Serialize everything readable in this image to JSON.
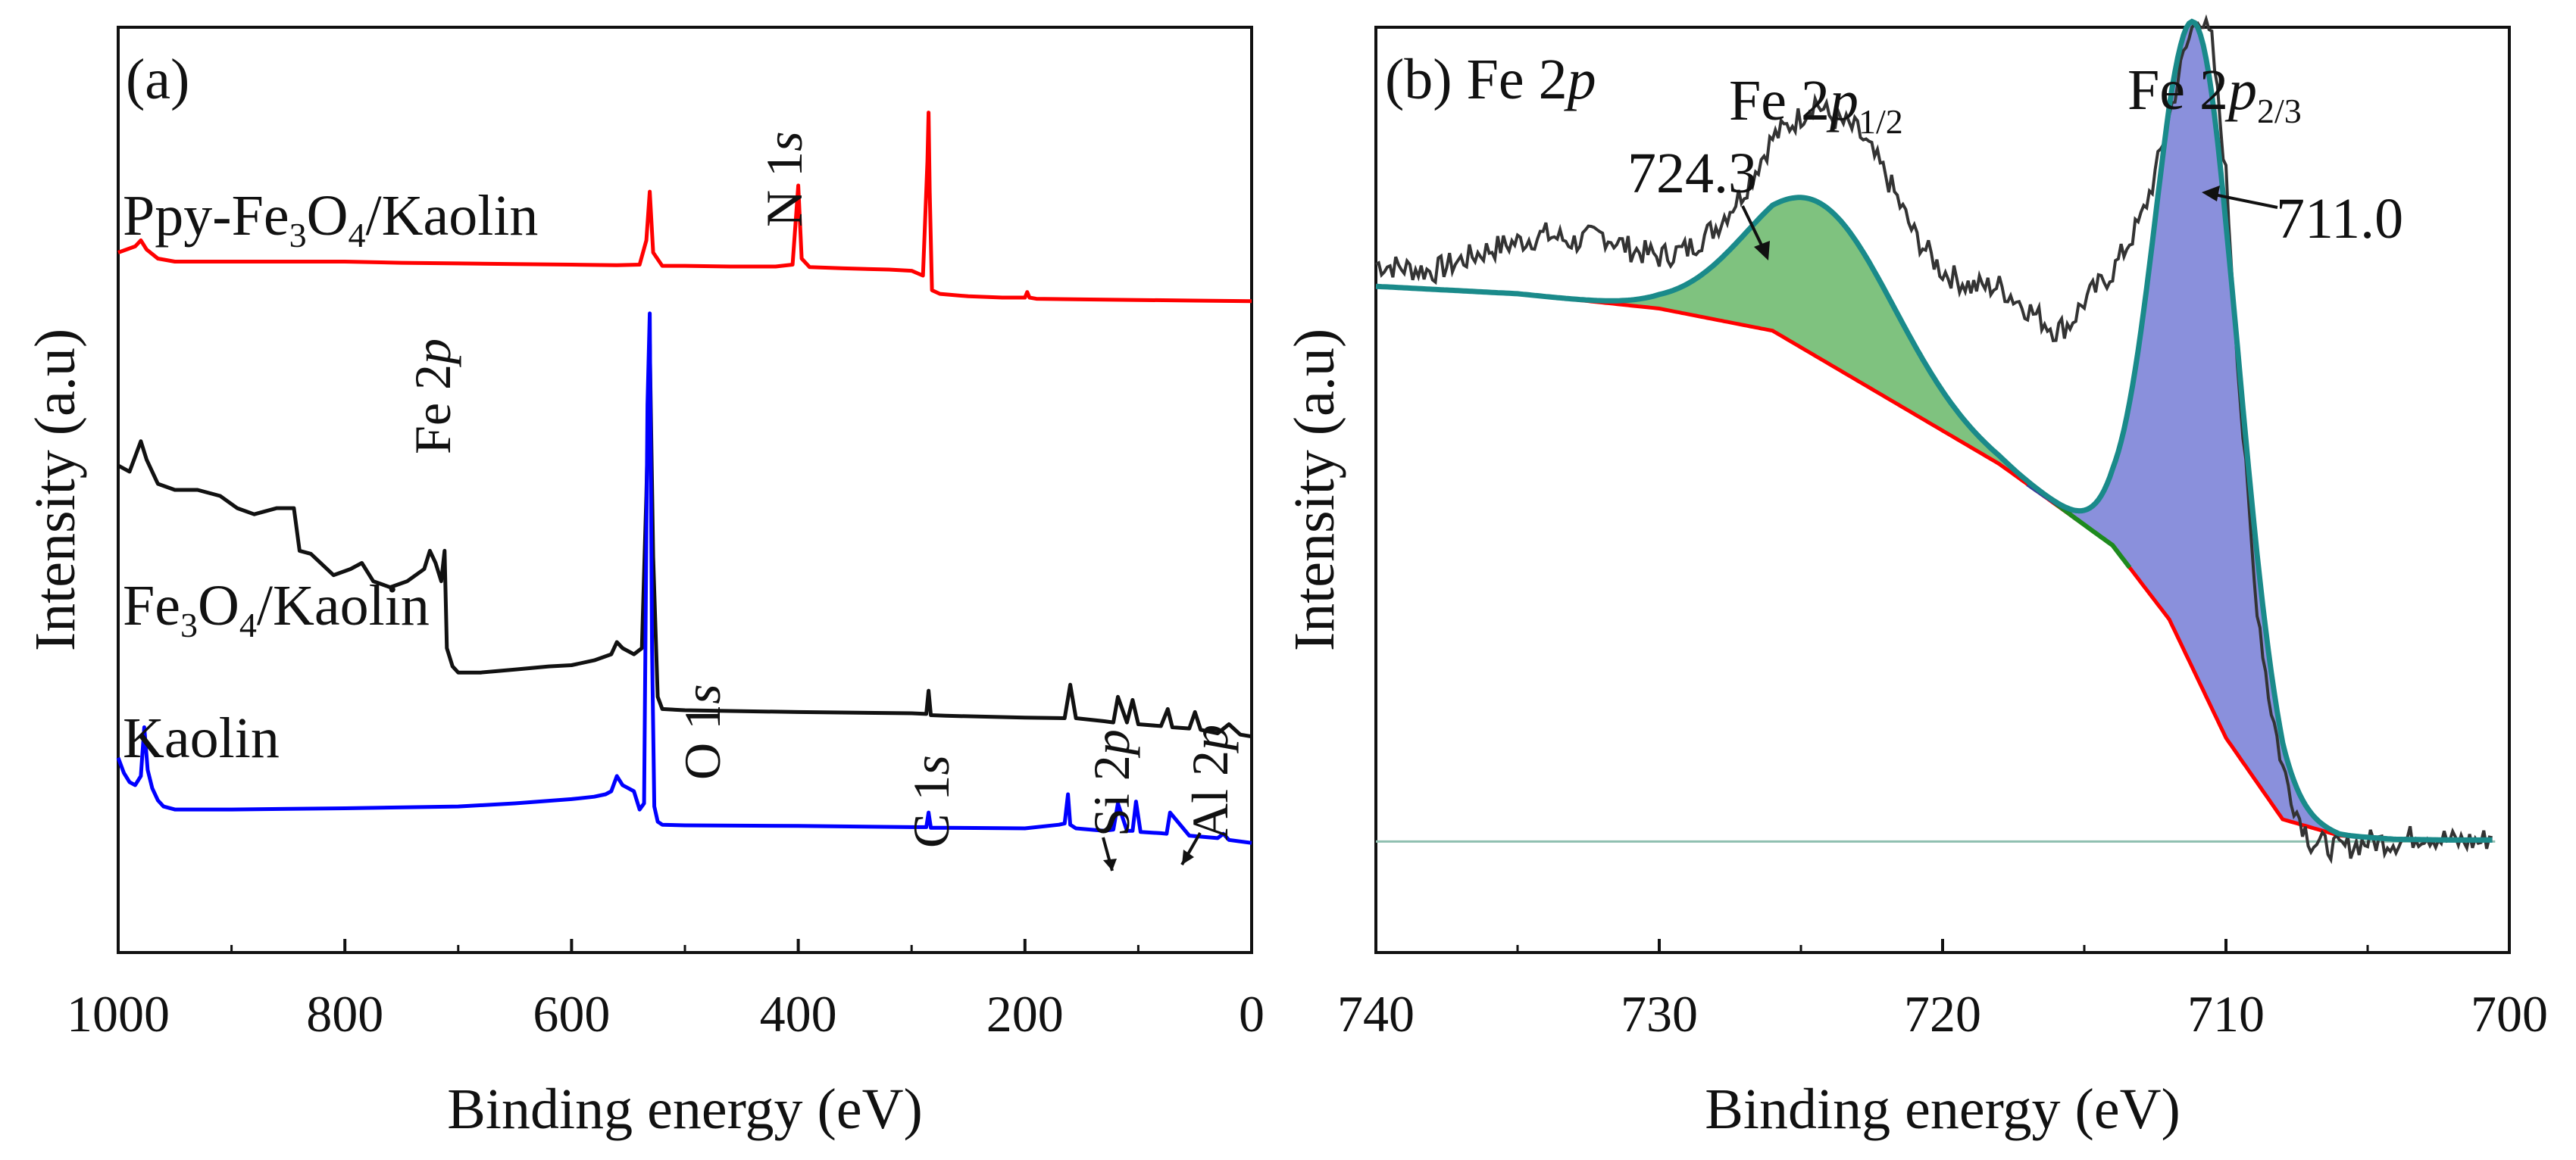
{
  "chart_data": [
    {
      "panel": "(a)",
      "type": "line",
      "title": "",
      "xlabel": "Binding energy (eV)",
      "ylabel": "Intensity (a.u)",
      "xlim": [
        1000,
        0
      ],
      "xticks": [
        1000,
        800,
        600,
        400,
        200,
        0
      ],
      "yticks_visible": false,
      "series": [
        {
          "name": "Ppy-Fe3O4/Kaolin",
          "label_main": "Ppy-Fe",
          "label_sub1": "3",
          "label_mid": "O",
          "label_sub2": "4",
          "label_tail": "/Kaolin",
          "color": "#ff0000",
          "x": [
            1000,
            985,
            980,
            975,
            965,
            950,
            900,
            850,
            800,
            750,
            700,
            650,
            600,
            560,
            540,
            534,
            531,
            528,
            520,
            500,
            460,
            420,
            405,
            400,
            397,
            390,
            360,
            320,
            300,
            290,
            286,
            285,
            284,
            282,
            275,
            250,
            220,
            200,
            198,
            196,
            190,
            150,
            100,
            50,
            0
          ],
          "y": [
            0.95,
            0.96,
            0.97,
            0.955,
            0.94,
            0.935,
            0.935,
            0.935,
            0.935,
            0.933,
            0.932,
            0.931,
            0.93,
            0.929,
            0.93,
            0.97,
            1.05,
            0.95,
            0.928,
            0.928,
            0.927,
            0.927,
            0.93,
            1.06,
            0.94,
            0.926,
            0.924,
            0.922,
            0.92,
            0.912,
            1.1,
            1.18,
            1.05,
            0.888,
            0.882,
            0.878,
            0.876,
            0.876,
            0.885,
            0.876,
            0.874,
            0.873,
            0.872,
            0.871,
            0.87
          ]
        },
        {
          "name": "Fe3O4/Kaolin",
          "label_main": "Fe",
          "label_sub1": "3",
          "label_mid": "O",
          "label_sub2": "4",
          "label_tail": "/Kaolin",
          "color": "#111111",
          "x": [
            1000,
            990,
            980,
            975,
            965,
            950,
            930,
            910,
            895,
            880,
            860,
            845,
            840,
            830,
            810,
            795,
            785,
            775,
            760,
            745,
            730,
            725,
            720,
            715,
            712,
            710,
            705,
            700,
            680,
            650,
            620,
            600,
            580,
            565,
            560,
            555,
            545,
            538,
            534,
            531,
            528,
            524,
            520,
            500,
            400,
            300,
            287,
            285,
            283,
            270,
            200,
            165,
            160,
            155,
            130,
            122,
            118,
            110,
            105,
            100,
            80,
            74,
            70,
            55,
            50,
            45,
            30,
            20,
            10,
            0
          ],
          "y": [
            0.6,
            0.59,
            0.64,
            0.61,
            0.57,
            0.56,
            0.56,
            0.55,
            0.53,
            0.52,
            0.53,
            0.53,
            0.46,
            0.455,
            0.42,
            0.43,
            0.44,
            0.41,
            0.4,
            0.41,
            0.43,
            0.46,
            0.44,
            0.41,
            0.46,
            0.3,
            0.27,
            0.26,
            0.26,
            0.265,
            0.27,
            0.272,
            0.28,
            0.29,
            0.31,
            0.3,
            0.29,
            0.3,
            0.55,
            0.8,
            0.45,
            0.22,
            0.2,
            0.198,
            0.195,
            0.193,
            0.192,
            0.23,
            0.19,
            0.189,
            0.186,
            0.185,
            0.24,
            0.185,
            0.18,
            0.178,
            0.22,
            0.178,
            0.215,
            0.175,
            0.172,
            0.2,
            0.17,
            0.168,
            0.195,
            0.166,
            0.16,
            0.175,
            0.158,
            0.155
          ]
        },
        {
          "name": "Kaolin",
          "label": "Kaolin",
          "color": "#0000ff",
          "x": [
            1000,
            995,
            990,
            985,
            980,
            977,
            974,
            970,
            965,
            960,
            950,
            900,
            850,
            800,
            700,
            650,
            600,
            580,
            570,
            565,
            560,
            555,
            550,
            545,
            540,
            536,
            533,
            531,
            529,
            527,
            524,
            520,
            500,
            400,
            300,
            287,
            285,
            283,
            270,
            200,
            170,
            165,
            162,
            160,
            155,
            130,
            122,
            118,
            110,
            105,
            102,
            98,
            80,
            75,
            72,
            55,
            30,
            25,
            20,
            0
          ],
          "y": [
            0.12,
            0.095,
            0.08,
            0.075,
            0.09,
            0.17,
            0.1,
            0.07,
            0.05,
            0.04,
            0.035,
            0.035,
            0.036,
            0.037,
            0.04,
            0.045,
            0.052,
            0.056,
            0.06,
            0.065,
            0.09,
            0.075,
            0.07,
            0.065,
            0.035,
            0.045,
            0.7,
            0.85,
            0.3,
            0.04,
            0.015,
            0.01,
            0.009,
            0.008,
            0.006,
            0.006,
            0.03,
            0.005,
            0.005,
            0.004,
            0.01,
            0.012,
            0.06,
            0.01,
            0.004,
            0.0,
            0.002,
            0.045,
            0.0,
            0.0,
            0.048,
            -0.002,
            -0.004,
            -0.005,
            0.03,
            -0.008,
            -0.012,
            -0.005,
            -0.015,
            -0.02
          ]
        }
      ],
      "ylim": [
        -0.2,
        1.32
      ],
      "annotations": [
        {
          "label": "O 1",
          "italic": "s"
        },
        {
          "label": "C 1",
          "italic": "s"
        },
        {
          "label": "Si 2",
          "italic": "p"
        },
        {
          "label": "Al 2",
          "italic": "p"
        },
        {
          "label": "N 1",
          "italic": "s"
        },
        {
          "label": "Fe 2",
          "italic": "p"
        }
      ]
    },
    {
      "panel": "(b)",
      "type": "area",
      "title_main": "Fe 2",
      "title_italic": "p",
      "xlabel": "Binding energy (eV)",
      "ylabel": "Intensity (a.u)",
      "xlim": [
        740,
        700
      ],
      "xticks": [
        740,
        730,
        720,
        710,
        700
      ],
      "ylim": [
        -0.15,
        1.1
      ],
      "yticks_visible": false,
      "colors": {
        "raw": "#333333",
        "background": "#ff0000",
        "envelope": "#1a8a8a",
        "peak1_fill": "#7fc27f",
        "peak1_line": "#1e8a1e",
        "peak2_fill": "#8a90dc",
        "peak2_line": "#3a3a9a",
        "baseline": "#8fbfb0"
      },
      "baseline_y": 0.0,
      "background_points": {
        "x": [
          740,
          735,
          730,
          726,
          722,
          718,
          714,
          712,
          710,
          708,
          706,
          704,
          702,
          700.5
        ],
        "y": [
          0.75,
          0.74,
          0.72,
          0.69,
          0.6,
          0.51,
          0.4,
          0.3,
          0.14,
          0.03,
          0.008,
          0.003,
          0.002,
          0.002
        ]
      },
      "peaks": [
        {
          "name": "Fe 2p1/2",
          "label_main": "Fe 2",
          "label_italic": "p",
          "label_sub": "1/2",
          "center": 724.3,
          "center_label": "724.3",
          "height": 0.21,
          "sigma": 2.6
        },
        {
          "name": "Fe 2p2/3",
          "label_main": "Fe 2",
          "label_italic": "p",
          "label_sub": "2/3",
          "center": 711.0,
          "center_label": "711.0",
          "height": 0.88,
          "sigma": 1.45
        }
      ],
      "raw_points": {
        "x": [
          740,
          738,
          736,
          734,
          733,
          732,
          731,
          730,
          729,
          728,
          727,
          726,
          725,
          724.5,
          724,
          723,
          722,
          721,
          720,
          719,
          718,
          717,
          716,
          715.5,
          715,
          714,
          713,
          712.5,
          712,
          711.5,
          711,
          710.5,
          710,
          709.5,
          709,
          708.5,
          708,
          707.5,
          707,
          706,
          705,
          704,
          703,
          702,
          701,
          700.5
        ],
        "y": [
          0.78,
          0.77,
          0.8,
          0.82,
          0.81,
          0.82,
          0.8,
          0.79,
          0.8,
          0.83,
          0.88,
          0.95,
          0.98,
          1.0,
          0.98,
          0.96,
          0.9,
          0.82,
          0.77,
          0.75,
          0.75,
          0.72,
          0.69,
          0.7,
          0.73,
          0.77,
          0.84,
          0.9,
          0.98,
          1.06,
          1.12,
          1.08,
          0.9,
          0.6,
          0.35,
          0.2,
          0.1,
          0.04,
          0.0,
          -0.01,
          0.0,
          0.0,
          0.01,
          0.0,
          0.0,
          0.01
        ]
      },
      "annotations": [
        {
          "text": "724.3",
          "target_x": 724.3
        },
        {
          "text": "711.0",
          "target_x": 711.0
        }
      ]
    }
  ]
}
